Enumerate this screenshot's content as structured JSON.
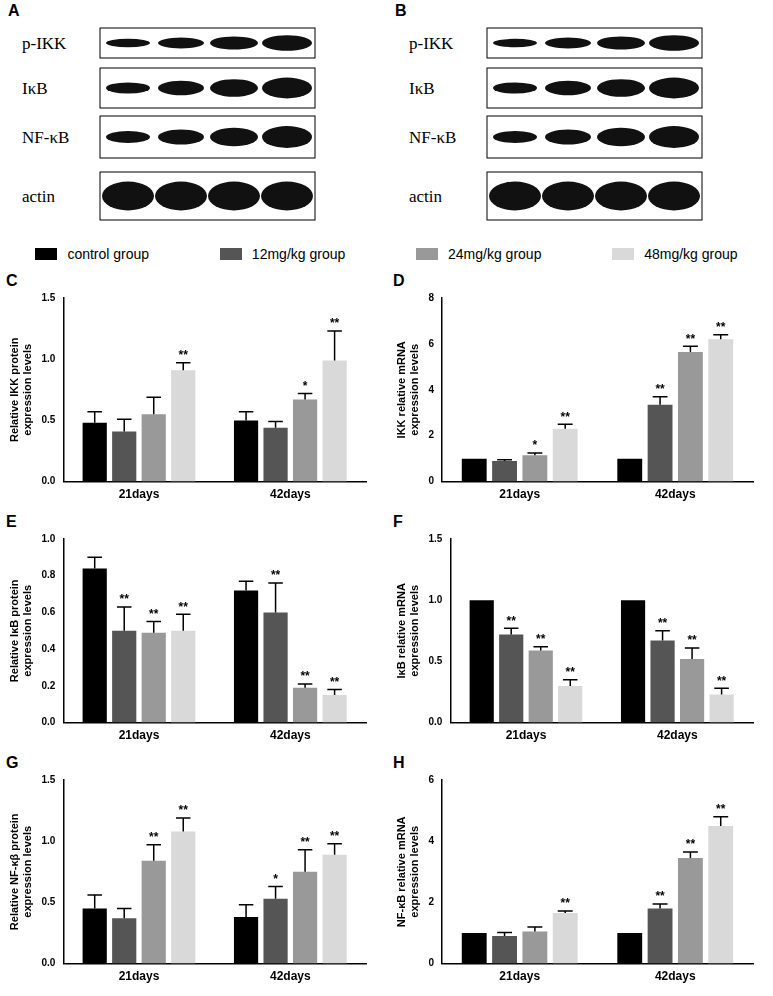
{
  "blots": [
    {
      "panel": "A",
      "rows": [
        "p-IKK",
        "IκB",
        "NF-κB",
        "actin"
      ]
    },
    {
      "panel": "B",
      "rows": [
        "p-IKK",
        "IκB",
        "NF-κB",
        "actin"
      ]
    }
  ],
  "chart_data": [
    {
      "panel": "C",
      "type": "bar",
      "y_label": [
        "Relative IKK protein",
        "expression levels"
      ],
      "categories": [
        "21days",
        "42days"
      ],
      "ylim": [
        0,
        1.5
      ],
      "yticks": [
        {
          "value": 0,
          "label": "0.0"
        },
        0.5,
        {
          "value": 1,
          "label": "1.0"
        },
        1.5
      ],
      "grid": false,
      "series": [
        {
          "name": "control group",
          "color": "#000000",
          "values": [
            0.48,
            0.5
          ],
          "errors": [
            0.09,
            0.07
          ],
          "significance": [
            null,
            null
          ]
        },
        {
          "name": "12mg/kg group",
          "color": "#555555",
          "values": [
            0.41,
            0.44
          ],
          "errors": [
            0.1,
            0.05
          ],
          "significance": [
            null,
            null
          ]
        },
        {
          "name": "24mg/kg group",
          "color": "#999999",
          "values": [
            0.55,
            0.67
          ],
          "errors": [
            0.14,
            0.05
          ],
          "significance": [
            null,
            "*"
          ]
        },
        {
          "name": "48mg/kg group",
          "color": "#d9d9d9",
          "values": [
            0.91,
            0.99
          ],
          "errors": [
            0.06,
            0.24
          ],
          "significance": [
            "**",
            "**"
          ]
        }
      ]
    },
    {
      "panel": "D",
      "type": "bar",
      "y_label": [
        "IKK relative mRNA",
        "expression levels"
      ],
      "categories": [
        "21days",
        "42days"
      ],
      "ylim": [
        0,
        8
      ],
      "yticks": [
        0,
        2,
        4,
        6,
        8
      ],
      "grid": false,
      "series": [
        {
          "name": "control group",
          "color": "#000000",
          "values": [
            1.0,
            1.0
          ],
          "errors": [
            0,
            0
          ],
          "significance": [
            null,
            null
          ]
        },
        {
          "name": "12mg/kg group",
          "color": "#555555",
          "values": [
            0.9,
            3.35
          ],
          "errors": [
            0.05,
            0.35
          ],
          "significance": [
            null,
            "**"
          ]
        },
        {
          "name": "24mg/kg group",
          "color": "#999999",
          "values": [
            1.15,
            5.65
          ],
          "errors": [
            0.1,
            0.25
          ],
          "significance": [
            "*",
            "**"
          ]
        },
        {
          "name": "48mg/kg group",
          "color": "#d9d9d9",
          "values": [
            2.3,
            6.2
          ],
          "errors": [
            0.2,
            0.2
          ],
          "significance": [
            "**",
            "**"
          ]
        }
      ]
    },
    {
      "panel": "E",
      "type": "bar",
      "y_label": [
        "Relative IκB protein",
        "expression levels"
      ],
      "categories": [
        "21days",
        "42days"
      ],
      "ylim": [
        0,
        1
      ],
      "yticks": [
        {
          "value": 0,
          "label": "0.0"
        },
        0.2,
        0.4,
        0.6,
        0.8,
        {
          "value": 1,
          "label": "1.0"
        }
      ],
      "grid": false,
      "series": [
        {
          "name": "control group",
          "color": "#000000",
          "values": [
            0.84,
            0.72
          ],
          "errors": [
            0.06,
            0.05
          ],
          "significance": [
            null,
            null
          ]
        },
        {
          "name": "12mg/kg group",
          "color": "#555555",
          "values": [
            0.5,
            0.6
          ],
          "errors": [
            0.13,
            0.16
          ],
          "significance": [
            "**",
            "**"
          ]
        },
        {
          "name": "24mg/kg group",
          "color": "#999999",
          "values": [
            0.49,
            0.19
          ],
          "errors": [
            0.06,
            0.02
          ],
          "significance": [
            "**",
            "**"
          ]
        },
        {
          "name": "48mg/kg group",
          "color": "#d9d9d9",
          "values": [
            0.5,
            0.15
          ],
          "errors": [
            0.09,
            0.03
          ],
          "significance": [
            "**",
            "**"
          ]
        }
      ]
    },
    {
      "panel": "F",
      "type": "bar",
      "y_label": [
        "IκB relative mRNA",
        "expression levels"
      ],
      "categories": [
        "21days",
        "42days"
      ],
      "ylim": [
        0,
        1.5
      ],
      "yticks": [
        {
          "value": 0,
          "label": "0.0"
        },
        0.5,
        {
          "value": 1,
          "label": "1.0"
        },
        1.5
      ],
      "grid": false,
      "series": [
        {
          "name": "control group",
          "color": "#000000",
          "values": [
            1.0,
            1.0
          ],
          "errors": [
            0,
            0
          ],
          "significance": [
            null,
            null
          ]
        },
        {
          "name": "12mg/kg group",
          "color": "#555555",
          "values": [
            0.72,
            0.67
          ],
          "errors": [
            0.05,
            0.08
          ],
          "significance": [
            "**",
            "**"
          ]
        },
        {
          "name": "24mg/kg group",
          "color": "#999999",
          "values": [
            0.59,
            0.52
          ],
          "errors": [
            0.03,
            0.09
          ],
          "significance": [
            "**",
            "**"
          ]
        },
        {
          "name": "48mg/kg group",
          "color": "#d9d9d9",
          "values": [
            0.3,
            0.23
          ],
          "errors": [
            0.05,
            0.05
          ],
          "significance": [
            "**",
            "**"
          ]
        }
      ]
    },
    {
      "panel": "G",
      "type": "bar",
      "y_label": [
        "Relative NF-κβ protein",
        "expression levels"
      ],
      "categories": [
        "21days",
        "42days"
      ],
      "ylim": [
        0,
        1.5
      ],
      "yticks": [
        {
          "value": 0,
          "label": "0.0"
        },
        0.5,
        {
          "value": 1,
          "label": "1.0"
        },
        1.5
      ],
      "grid": false,
      "series": [
        {
          "name": "control group",
          "color": "#000000",
          "values": [
            0.45,
            0.38
          ],
          "errors": [
            0.11,
            0.1
          ],
          "significance": [
            null,
            null
          ]
        },
        {
          "name": "12mg/kg group",
          "color": "#555555",
          "values": [
            0.37,
            0.53
          ],
          "errors": [
            0.08,
            0.1
          ],
          "significance": [
            null,
            "*"
          ]
        },
        {
          "name": "24mg/kg group",
          "color": "#999999",
          "values": [
            0.84,
            0.75
          ],
          "errors": [
            0.13,
            0.18
          ],
          "significance": [
            "**",
            "**"
          ]
        },
        {
          "name": "48mg/kg group",
          "color": "#d9d9d9",
          "values": [
            1.08,
            0.89
          ],
          "errors": [
            0.11,
            0.09
          ],
          "significance": [
            "**",
            "**"
          ]
        }
      ]
    },
    {
      "panel": "H",
      "type": "bar",
      "y_label": [
        "NF-κB relative mRNA",
        "expression levels"
      ],
      "categories": [
        "21days",
        "42days"
      ],
      "ylim": [
        0,
        6
      ],
      "yticks": [
        0,
        2,
        4,
        6
      ],
      "grid": false,
      "series": [
        {
          "name": "control group",
          "color": "#000000",
          "values": [
            1.0,
            1.0
          ],
          "errors": [
            0,
            0
          ],
          "significance": [
            null,
            null
          ]
        },
        {
          "name": "12mg/kg group",
          "color": "#555555",
          "values": [
            0.9,
            1.8
          ],
          "errors": [
            0.12,
            0.15
          ],
          "significance": [
            null,
            "**"
          ]
        },
        {
          "name": "24mg/kg group",
          "color": "#999999",
          "values": [
            1.05,
            3.45
          ],
          "errors": [
            0.15,
            0.2
          ],
          "significance": [
            null,
            "**"
          ]
        },
        {
          "name": "48mg/kg group",
          "color": "#d9d9d9",
          "values": [
            1.65,
            4.5
          ],
          "errors": [
            0.07,
            0.3
          ],
          "significance": [
            "**",
            "**"
          ]
        }
      ]
    }
  ]
}
